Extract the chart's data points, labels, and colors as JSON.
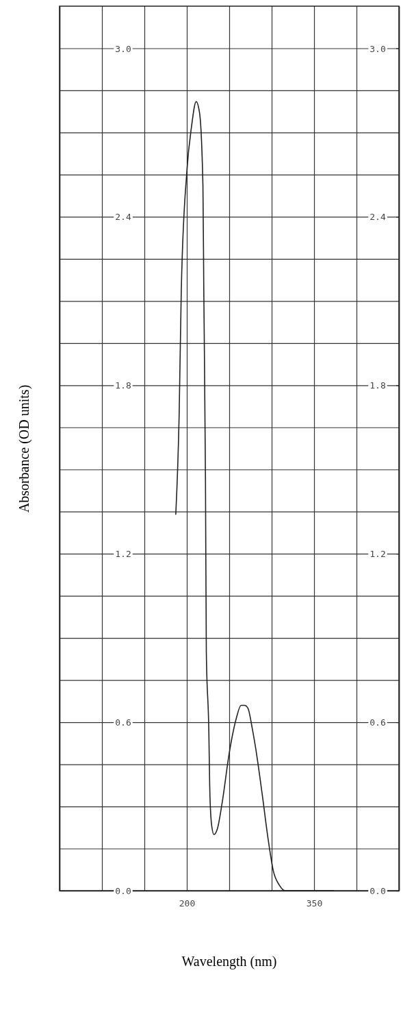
{
  "chart_data": {
    "type": "line",
    "xlabel": "Wavelength (nm)",
    "ylabel": "Absorbance (OD units)",
    "xlim": [
      50,
      450
    ],
    "xticks": [
      {
        "value": 50,
        "label": null
      },
      {
        "value": 100,
        "label": null
      },
      {
        "value": 150,
        "label": null
      },
      200,
      {
        "value": 250,
        "label": null
      },
      {
        "value": 300,
        "label": null
      },
      350,
      {
        "value": 400,
        "label": null
      },
      {
        "value": 450,
        "label": null
      }
    ],
    "ylim": [
      0,
      3.15
    ],
    "yticks": [
      {
        "value": 0,
        "label": "0.0"
      },
      {
        "value": 0.15,
        "label": null
      },
      {
        "value": 0.3,
        "label": null
      },
      {
        "value": 0.45,
        "label": null
      },
      {
        "value": 0.6,
        "label": "0.6"
      },
      {
        "value": 0.75,
        "label": null
      },
      {
        "value": 0.9,
        "label": null
      },
      {
        "value": 1.05,
        "label": null
      },
      {
        "value": 1.2,
        "label": "1.2"
      },
      {
        "value": 1.35,
        "label": null
      },
      {
        "value": 1.5,
        "label": null
      },
      {
        "value": 1.65,
        "label": null
      },
      {
        "value": 1.8,
        "label": "1.8"
      },
      {
        "value": 1.95,
        "label": null
      },
      {
        "value": 2.1,
        "label": null
      },
      {
        "value": 2.25,
        "label": null
      },
      {
        "value": 2.4,
        "label": "2.4"
      },
      {
        "value": 2.55,
        "label": null
      },
      {
        "value": 2.7,
        "label": null
      },
      {
        "value": 2.85,
        "label": null
      },
      {
        "value": 3.0,
        "label": "3.0"
      }
    ],
    "y2lim": [
      0,
      3.15
    ],
    "y2ticks": [
      {
        "value": 0,
        "label": "0.0"
      },
      {
        "value": 0.6,
        "label": "0.6"
      },
      {
        "value": 1.2,
        "label": "1.2"
      },
      {
        "value": 1.8,
        "label": "1.8"
      },
      {
        "value": 2.4,
        "label": "2.4"
      },
      {
        "value": 3.0,
        "label": "3.0"
      }
    ],
    "grid": true,
    "marker": "none",
    "line_style": "solid",
    "series": [
      {
        "color": "#222222",
        "x": [
          187,
          191,
          193.5,
          200,
          205.5,
          211,
          215,
          219,
          220,
          222,
          223,
          226,
          227,
          229,
          232,
          236,
          242,
          250,
          258,
          264,
          268,
          272,
          277,
          281,
          289,
          296,
          302,
          309,
          316,
          329,
          373
        ],
        "values": [
          1.34,
          1.7,
          2.14,
          2.56,
          2.72,
          2.81,
          2.77,
          2.51,
          2.14,
          1.46,
          0.85,
          0.56,
          0.37,
          0.24,
          0.2,
          0.22,
          0.32,
          0.49,
          0.61,
          0.66,
          0.66,
          0.65,
          0.58,
          0.51,
          0.34,
          0.18,
          0.07,
          0.02,
          0,
          0,
          0
        ]
      }
    ]
  }
}
